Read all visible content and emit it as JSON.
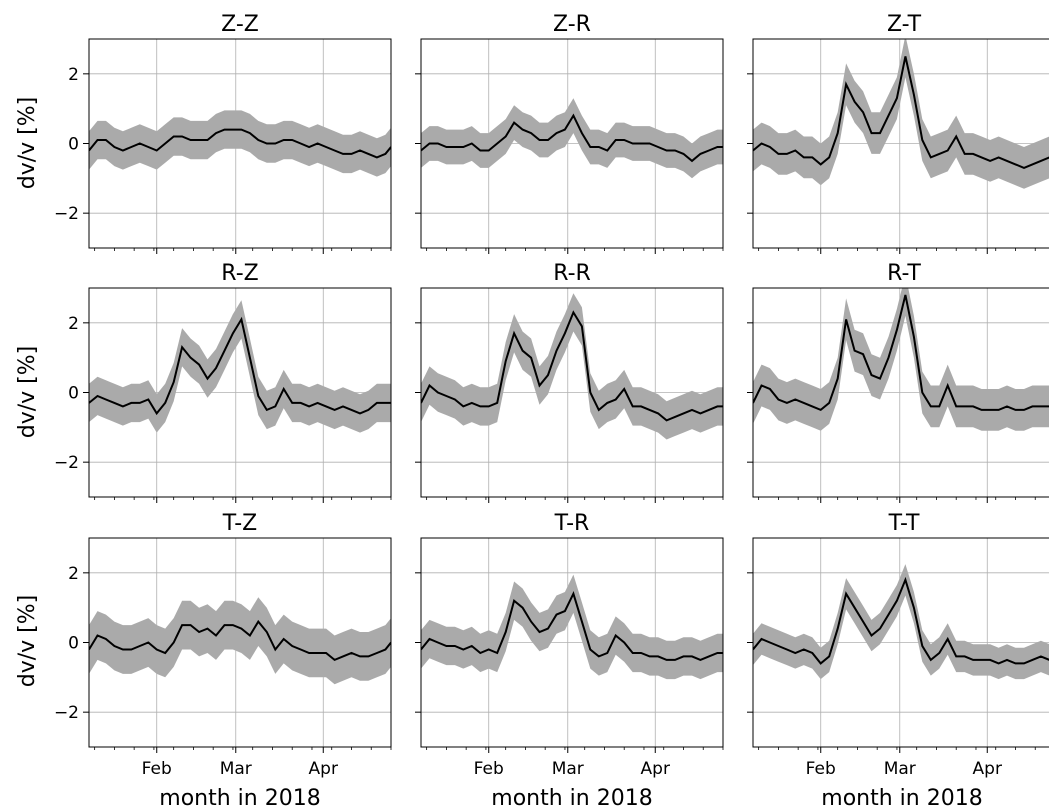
{
  "chart_data": {
    "type": "line",
    "layout": "3x3 grid, shared x and y axes",
    "ylabel": "dv/v [%]",
    "xlabel": "month in 2018",
    "ylim": [
      -3,
      3
    ],
    "yticks": [
      -2,
      0,
      2
    ],
    "ytick_labels": [
      "−2",
      "0",
      "2"
    ],
    "xlim_days": [
      8,
      115
    ],
    "xticks": [
      {
        "day": 32,
        "label": "Feb"
      },
      {
        "day": 60,
        "label": "Mar"
      },
      {
        "day": 91,
        "label": "Apr"
      }
    ],
    "grid": true,
    "line_color": "#000000",
    "band_color": "#aaaaaa",
    "x_days": [
      8,
      11,
      14,
      17,
      20,
      23,
      26,
      29,
      32,
      35,
      38,
      41,
      44,
      47,
      50,
      53,
      56,
      59,
      62,
      65,
      68,
      71,
      74,
      77,
      80,
      83,
      86,
      89,
      92,
      95,
      98,
      101,
      104,
      107,
      110,
      113,
      115
    ],
    "panels": [
      {
        "title": "Z-Z",
        "values": [
          -0.2,
          0.1,
          0.1,
          -0.1,
          -0.2,
          -0.1,
          0.0,
          -0.1,
          -0.2,
          0.0,
          0.2,
          0.2,
          0.1,
          0.1,
          0.1,
          0.3,
          0.4,
          0.4,
          0.4,
          0.3,
          0.1,
          0.0,
          0.0,
          0.1,
          0.1,
          0.0,
          -0.1,
          0.0,
          -0.1,
          -0.2,
          -0.3,
          -0.3,
          -0.2,
          -0.3,
          -0.4,
          -0.3,
          -0.1
        ],
        "band": 0.55
      },
      {
        "title": "Z-R",
        "values": [
          -0.2,
          0.0,
          0.0,
          -0.1,
          -0.1,
          -0.1,
          0.0,
          -0.2,
          -0.2,
          0.0,
          0.2,
          0.6,
          0.4,
          0.3,
          0.1,
          0.1,
          0.3,
          0.4,
          0.8,
          0.3,
          -0.1,
          -0.1,
          -0.2,
          0.1,
          0.1,
          0.0,
          0.0,
          0.0,
          -0.1,
          -0.2,
          -0.2,
          -0.3,
          -0.5,
          -0.3,
          -0.2,
          -0.1,
          -0.1
        ],
        "band": 0.5
      },
      {
        "title": "Z-T",
        "values": [
          -0.2,
          0.0,
          -0.1,
          -0.3,
          -0.3,
          -0.2,
          -0.4,
          -0.4,
          -0.6,
          -0.4,
          0.3,
          1.7,
          1.2,
          0.9,
          0.3,
          0.3,
          0.8,
          1.3,
          2.5,
          1.4,
          0.1,
          -0.4,
          -0.3,
          -0.2,
          0.2,
          -0.3,
          -0.3,
          -0.4,
          -0.5,
          -0.4,
          -0.5,
          -0.6,
          -0.7,
          -0.6,
          -0.5,
          -0.4,
          -0.4
        ],
        "band": 0.6
      },
      {
        "title": "R-Z",
        "values": [
          -0.3,
          -0.1,
          -0.2,
          -0.3,
          -0.4,
          -0.3,
          -0.3,
          -0.2,
          -0.6,
          -0.3,
          0.3,
          1.3,
          1.0,
          0.8,
          0.4,
          0.7,
          1.2,
          1.7,
          2.1,
          1.0,
          -0.1,
          -0.5,
          -0.4,
          0.1,
          -0.3,
          -0.3,
          -0.4,
          -0.3,
          -0.4,
          -0.5,
          -0.4,
          -0.5,
          -0.6,
          -0.5,
          -0.3,
          -0.3,
          -0.3
        ],
        "band": 0.55
      },
      {
        "title": "R-R",
        "values": [
          -0.3,
          0.2,
          0.0,
          -0.1,
          -0.2,
          -0.4,
          -0.3,
          -0.4,
          -0.4,
          -0.3,
          0.9,
          1.7,
          1.2,
          1.0,
          0.2,
          0.5,
          1.2,
          1.7,
          2.3,
          1.9,
          0.0,
          -0.5,
          -0.3,
          -0.2,
          0.1,
          -0.4,
          -0.4,
          -0.5,
          -0.6,
          -0.8,
          -0.7,
          -0.6,
          -0.5,
          -0.6,
          -0.5,
          -0.4,
          -0.4
        ],
        "band": 0.55
      },
      {
        "title": "R-T",
        "values": [
          -0.3,
          0.2,
          0.1,
          -0.2,
          -0.3,
          -0.2,
          -0.3,
          -0.4,
          -0.5,
          -0.3,
          0.4,
          2.1,
          1.2,
          1.1,
          0.5,
          0.4,
          1.0,
          1.8,
          2.8,
          1.6,
          0.0,
          -0.4,
          -0.4,
          0.2,
          -0.4,
          -0.4,
          -0.4,
          -0.5,
          -0.5,
          -0.5,
          -0.4,
          -0.5,
          -0.5,
          -0.4,
          -0.4,
          -0.4,
          -0.4
        ],
        "band": 0.6
      },
      {
        "title": "T-Z",
        "values": [
          -0.2,
          0.2,
          0.1,
          -0.1,
          -0.2,
          -0.2,
          -0.1,
          0.0,
          -0.2,
          -0.3,
          0.0,
          0.5,
          0.5,
          0.3,
          0.4,
          0.2,
          0.5,
          0.5,
          0.4,
          0.2,
          0.6,
          0.3,
          -0.2,
          0.1,
          -0.1,
          -0.2,
          -0.3,
          -0.3,
          -0.3,
          -0.5,
          -0.4,
          -0.3,
          -0.4,
          -0.4,
          -0.3,
          -0.2,
          0.0
        ],
        "band": 0.7
      },
      {
        "title": "T-R",
        "values": [
          -0.2,
          0.1,
          0.0,
          -0.1,
          -0.1,
          -0.2,
          -0.1,
          -0.3,
          -0.2,
          -0.3,
          0.3,
          1.2,
          1.0,
          0.6,
          0.3,
          0.4,
          0.8,
          0.9,
          1.4,
          0.6,
          -0.2,
          -0.4,
          -0.3,
          0.2,
          0.0,
          -0.3,
          -0.3,
          -0.4,
          -0.4,
          -0.5,
          -0.5,
          -0.4,
          -0.4,
          -0.5,
          -0.4,
          -0.3,
          -0.3
        ],
        "band": 0.55
      },
      {
        "title": "T-T",
        "values": [
          -0.2,
          0.1,
          0.0,
          -0.1,
          -0.2,
          -0.3,
          -0.2,
          -0.3,
          -0.6,
          -0.4,
          0.4,
          1.4,
          1.0,
          0.6,
          0.2,
          0.4,
          0.8,
          1.2,
          1.8,
          1.0,
          -0.1,
          -0.5,
          -0.3,
          0.1,
          -0.4,
          -0.4,
          -0.5,
          -0.5,
          -0.5,
          -0.6,
          -0.5,
          -0.6,
          -0.6,
          -0.5,
          -0.4,
          -0.5,
          -0.5
        ],
        "band": 0.45
      }
    ]
  }
}
